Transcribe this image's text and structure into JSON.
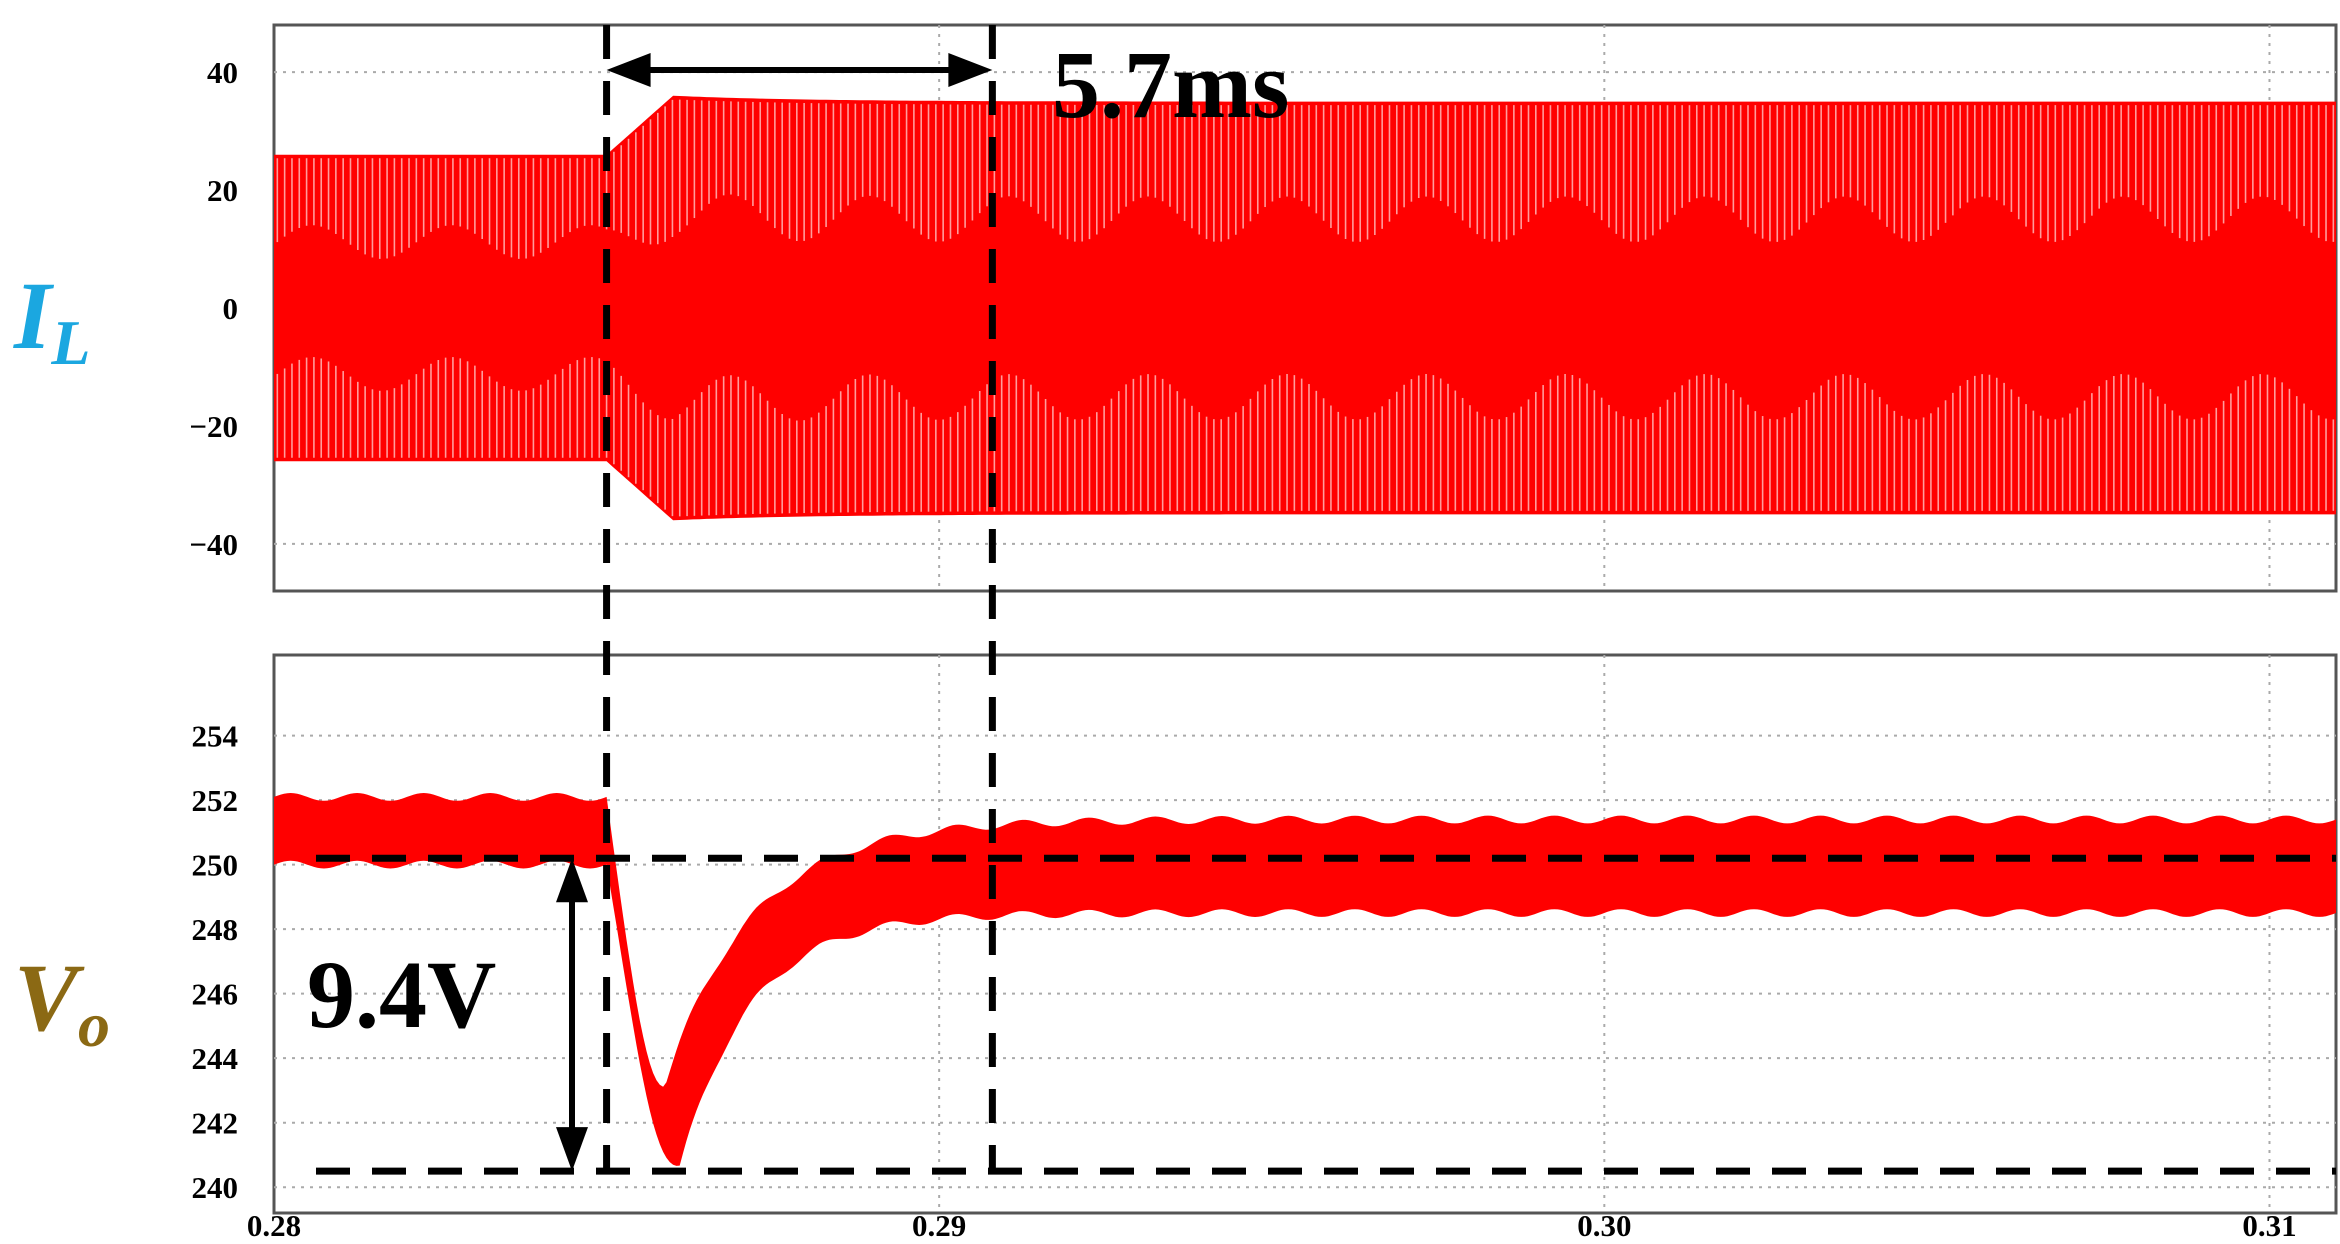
{
  "chart_data": [
    {
      "type": "line",
      "panel": "top",
      "ylabel": "I",
      "ylabel_sub": "L",
      "ylabel_color": "#1BA7E0",
      "series_color": "#FF0000",
      "xlim": [
        0.28,
        0.311
      ],
      "ylim": [
        -48,
        48
      ],
      "yticks": [
        40,
        20,
        0,
        -20,
        -40
      ],
      "ytick_labels": [
        "40",
        "20",
        "0",
        "−20",
        "−40"
      ],
      "grid": true,
      "envelope": {
        "t_step": 0.285,
        "before_amplitude": 26,
        "after_peak_amplitude": 36,
        "steady_amplitude": 35
      }
    },
    {
      "type": "line",
      "panel": "bottom",
      "ylabel": "V",
      "ylabel_sub": "o",
      "ylabel_color": "#8B6914",
      "series_color": "#FF0000",
      "xlim": [
        0.28,
        0.311
      ],
      "ylim": [
        239.2,
        256.5
      ],
      "yticks": [
        254,
        252,
        250,
        248,
        246,
        244,
        242,
        240
      ],
      "ytick_labels": [
        "254",
        "252",
        "250",
        "248",
        "246",
        "244",
        "242",
        "240"
      ],
      "xticks": [
        0.28,
        0.29,
        0.3,
        0.31
      ],
      "xtick_labels": [
        "0.28",
        "0.29",
        "0.30",
        "0.31"
      ],
      "grid": true,
      "envelope": {
        "before_upper": 252.1,
        "before_lower": 250.0,
        "min_lower": 240.6,
        "min_upper": 243.2,
        "min_time": 0.2861,
        "steady_upper": 251.4,
        "steady_lower": 248.5
      }
    }
  ],
  "annotations": {
    "settling_time": "5.7ms",
    "voltage_drop": "9.4V",
    "t_start": 0.285,
    "t_end": 0.2908,
    "v_ref": 250.2,
    "v_min": 240.5
  }
}
